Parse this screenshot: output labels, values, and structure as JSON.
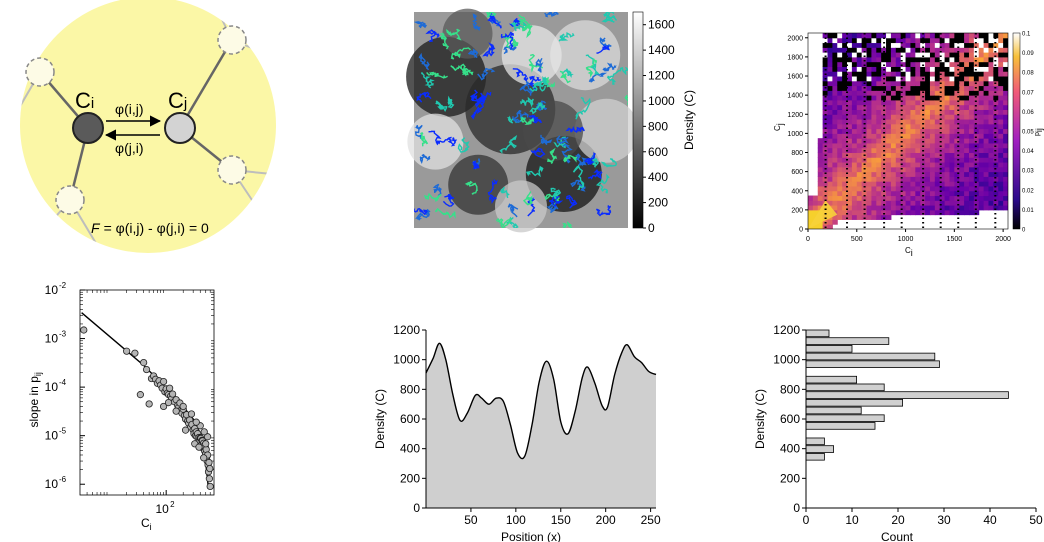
{
  "diagram": {
    "node_i": "C",
    "node_i_sub": "i",
    "node_j": "C",
    "node_j_sub": "j",
    "flow_ij": "φ(i,j)",
    "flow_ji": "φ(j,i)",
    "equation": "= φ(i,j) - φ(j,i) = 0",
    "equation_F": "F",
    "colors": {
      "bg": "#fbf7a6",
      "node_i": "#5a5a5a",
      "node_j": "#d3d3d3",
      "edge": "#666666",
      "ghost": "#bdbdbd"
    }
  },
  "chart_data": [
    {
      "id": "trajectory-map",
      "type": "heatmap",
      "title": "",
      "colorbar_label": "Density (C)",
      "colorbar_ticks": [
        "0",
        "200",
        "400",
        "600",
        "800",
        "1000",
        "1200",
        "1400",
        "1600"
      ],
      "colorbar_range": [
        0,
        1700
      ],
      "colormap": "grayscale",
      "overlay_colors": [
        "#0a2cff",
        "#1e6bd6",
        "#20c9b0",
        "#36e08a"
      ]
    },
    {
      "id": "pij-heatmap",
      "type": "heatmap",
      "xlabel": "C",
      "xlabel_sub": "i",
      "ylabel": "C",
      "ylabel_sub": "j",
      "x_ticks": [
        "0",
        "500",
        "1000",
        "1500",
        "2000"
      ],
      "y_ticks": [
        "0",
        "200",
        "400",
        "600",
        "800",
        "1000",
        "1200",
        "1400",
        "1600",
        "1800",
        "2000"
      ],
      "xlim": [
        0,
        2050
      ],
      "ylim": [
        0,
        2050
      ],
      "colorbar_label": "p",
      "colorbar_label_sub": "ij",
      "colorbar_ticks": [
        "0",
        "0.01",
        "0.02",
        "0.03",
        "0.04",
        "0.05",
        "0.06",
        "0.07",
        "0.08",
        "0.09",
        "0.1"
      ],
      "colorbar_range": [
        0,
        0.1
      ],
      "colormap": "plasma"
    },
    {
      "id": "slope-scatter",
      "type": "scatter",
      "xlabel": "C",
      "xlabel_sub": "i",
      "ylabel": "slope in p",
      "ylabel_sub": "ij",
      "x_scale": "log",
      "y_scale": "log",
      "xlim": [
        3,
        700
      ],
      "ylim": [
        6e-07,
        0.01
      ],
      "x_ticks": [
        {
          "base": "10",
          "exp": "2",
          "value": 100
        }
      ],
      "y_ticks": [
        {
          "base": "10",
          "exp": "-2",
          "value": 0.01
        },
        {
          "base": "10",
          "exp": "-3",
          "value": 0.001
        },
        {
          "base": "10",
          "exp": "-4",
          "value": 0.0001
        },
        {
          "base": "10",
          "exp": "-5",
          "value": 1e-05
        },
        {
          "base": "10",
          "exp": "-6",
          "value": 1e-06
        }
      ],
      "fit_line": [
        [
          3.2,
          0.0034
        ],
        [
          40,
          0.00028
        ],
        [
          150,
          6e-05
        ],
        [
          300,
          2.2e-05
        ],
        [
          420,
          1e-05
        ],
        [
          500,
          2.8e-06
        ],
        [
          560,
          8e-07
        ]
      ],
      "points": [
        [
          3.5,
          0.0015
        ],
        [
          20,
          0.00055
        ],
        [
          28,
          0.0005
        ],
        [
          40,
          0.00032
        ],
        [
          45,
          0.00023
        ],
        [
          55,
          0.00015
        ],
        [
          60,
          0.00017
        ],
        [
          65,
          0.000145
        ],
        [
          70,
          0.00012
        ],
        [
          75,
          0.000135
        ],
        [
          80,
          0.00011
        ],
        [
          85,
          9.5e-05
        ],
        [
          90,
          0.00013
        ],
        [
          95,
          8e-05
        ],
        [
          100,
          9.2e-05
        ],
        [
          105,
          7.5e-05
        ],
        [
          110,
          7e-05
        ],
        [
          115,
          9.5e-05
        ],
        [
          120,
          6.5e-05
        ],
        [
          125,
          5.8e-05
        ],
        [
          130,
          7.2e-05
        ],
        [
          140,
          5e-05
        ],
        [
          150,
          5.5e-05
        ],
        [
          160,
          4.2e-05
        ],
        [
          165,
          3.8e-05
        ],
        [
          175,
          4.7e-05
        ],
        [
          180,
          3.3e-05
        ],
        [
          190,
          2.9e-05
        ],
        [
          200,
          3.5e-05
        ],
        [
          210,
          2.6e-05
        ],
        [
          220,
          2.2e-05
        ],
        [
          230,
          2.7e-05
        ],
        [
          240,
          2e-05
        ],
        [
          250,
          1.8e-05
        ],
        [
          260,
          2.1e-05
        ],
        [
          270,
          1.5e-05
        ],
        [
          285,
          1.7e-05
        ],
        [
          300,
          1.3e-05
        ],
        [
          310,
          1.1e-05
        ],
        [
          320,
          1.4e-05
        ],
        [
          330,
          1e-05
        ],
        [
          340,
          1.2e-05
        ],
        [
          350,
          9.5e-06
        ],
        [
          360,
          1.1e-05
        ],
        [
          370,
          8e-06
        ],
        [
          380,
          9.2e-06
        ],
        [
          390,
          7.5e-06
        ],
        [
          400,
          9e-06
        ],
        [
          410,
          8.8e-06
        ],
        [
          420,
          6.5e-06
        ],
        [
          430,
          8e-06
        ],
        [
          440,
          7.8e-06
        ],
        [
          450,
          5.5e-06
        ],
        [
          460,
          7e-06
        ],
        [
          470,
          6.2e-06
        ],
        [
          480,
          4.8e-06
        ],
        [
          490,
          5.8e-06
        ],
        [
          500,
          4.2e-06
        ],
        [
          510,
          5.2e-06
        ],
        [
          520,
          3.6e-06
        ],
        [
          530,
          3e-06
        ],
        [
          540,
          4e-06
        ],
        [
          550,
          2.5e-06
        ],
        [
          560,
          1.8e-06
        ],
        [
          570,
          2.8e-06
        ],
        [
          580,
          1.3e-06
        ],
        [
          590,
          2.1e-06
        ],
        [
          600,
          9e-07
        ],
        [
          50,
          4.5e-05
        ],
        [
          35,
          7e-05
        ],
        [
          90,
          4e-05
        ],
        [
          110,
          4.8e-05
        ],
        [
          150,
          3.2e-05
        ],
        [
          220,
          1.3e-05
        ],
        [
          320,
          6.8e-06
        ],
        [
          380,
          5.8e-06
        ],
        [
          460,
          3.5e-06
        ],
        [
          500,
          6.8e-06
        ],
        [
          540,
          9.5e-06
        ],
        [
          470,
          1.2e-05
        ],
        [
          400,
          1.6e-05
        ],
        [
          340,
          1.9e-05
        ],
        [
          280,
          2.8e-05
        ],
        [
          200,
          4e-05
        ]
      ]
    },
    {
      "id": "density-profile",
      "type": "area",
      "xlabel": "Position (x)",
      "ylabel": "Density (C)",
      "xlim": [
        0,
        256
      ],
      "ylim": [
        0,
        1200
      ],
      "x_ticks": [
        "50",
        "100",
        "150",
        "200",
        "250"
      ],
      "y_ticks": [
        "0",
        "200",
        "400",
        "600",
        "800",
        "1000",
        "1200"
      ],
      "x": [
        0,
        8,
        15,
        22,
        30,
        38,
        46,
        55,
        62,
        70,
        78,
        86,
        94,
        102,
        110,
        118,
        126,
        134,
        142,
        150,
        158,
        166,
        174,
        180,
        188,
        196,
        202,
        210,
        218,
        224,
        232,
        240,
        248,
        256
      ],
      "values": [
        910,
        1010,
        1110,
        1000,
        760,
        590,
        640,
        760,
        740,
        700,
        740,
        720,
        560,
        370,
        350,
        560,
        850,
        990,
        870,
        580,
        500,
        650,
        880,
        950,
        840,
        690,
        680,
        900,
        1050,
        1100,
        1020,
        980,
        920,
        900
      ]
    },
    {
      "id": "density-histogram",
      "type": "bar",
      "orientation": "horizontal",
      "xlabel": "Count",
      "ylabel": "Density (C)",
      "xlim": [
        0,
        50
      ],
      "ylim": [
        0,
        1200
      ],
      "x_ticks": [
        "0",
        "10",
        "20",
        "30",
        "40",
        "50"
      ],
      "y_ticks": [
        "0",
        "200",
        "400",
        "600",
        "800",
        "1000",
        "1200"
      ],
      "bin_width": 52,
      "bins": [
        {
          "center": 1174,
          "count": 5
        },
        {
          "center": 1122,
          "count": 18
        },
        {
          "center": 1070,
          "count": 10
        },
        {
          "center": 1018,
          "count": 28
        },
        {
          "center": 966,
          "count": 29
        },
        {
          "center": 862,
          "count": 11
        },
        {
          "center": 810,
          "count": 17
        },
        {
          "center": 758,
          "count": 44
        },
        {
          "center": 706,
          "count": 21
        },
        {
          "center": 654,
          "count": 12
        },
        {
          "center": 602,
          "count": 17
        },
        {
          "center": 550,
          "count": 15
        },
        {
          "center": 446,
          "count": 4
        },
        {
          "center": 394,
          "count": 6
        },
        {
          "center": 342,
          "count": 4
        }
      ]
    }
  ]
}
